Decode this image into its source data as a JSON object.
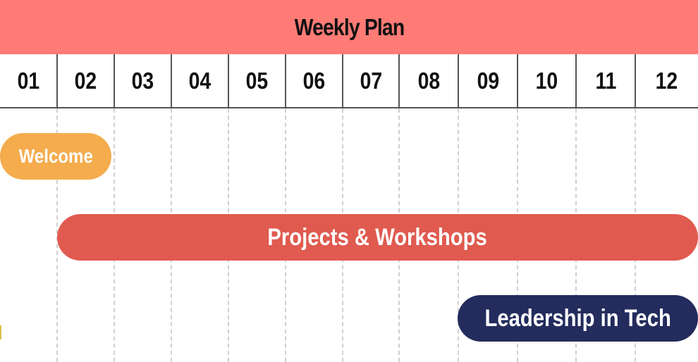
{
  "title": "Weekly Plan",
  "weeks": [
    "01",
    "02",
    "03",
    "04",
    "05",
    "06",
    "07",
    "08",
    "09",
    "10",
    "11",
    "12"
  ],
  "colors": {
    "header": "#ff7b76",
    "welcome": "#f4ac4d",
    "projects": "#e05a4f",
    "leadership": "#232c5c"
  },
  "bars": [
    {
      "label": "Welcome",
      "start_week": "01",
      "end_week": "02"
    },
    {
      "label": "Projects & Workshops",
      "start_week": "02",
      "end_week": "12"
    },
    {
      "label": "Leadership in Tech",
      "start_week": "09",
      "end_week": "12"
    }
  ]
}
